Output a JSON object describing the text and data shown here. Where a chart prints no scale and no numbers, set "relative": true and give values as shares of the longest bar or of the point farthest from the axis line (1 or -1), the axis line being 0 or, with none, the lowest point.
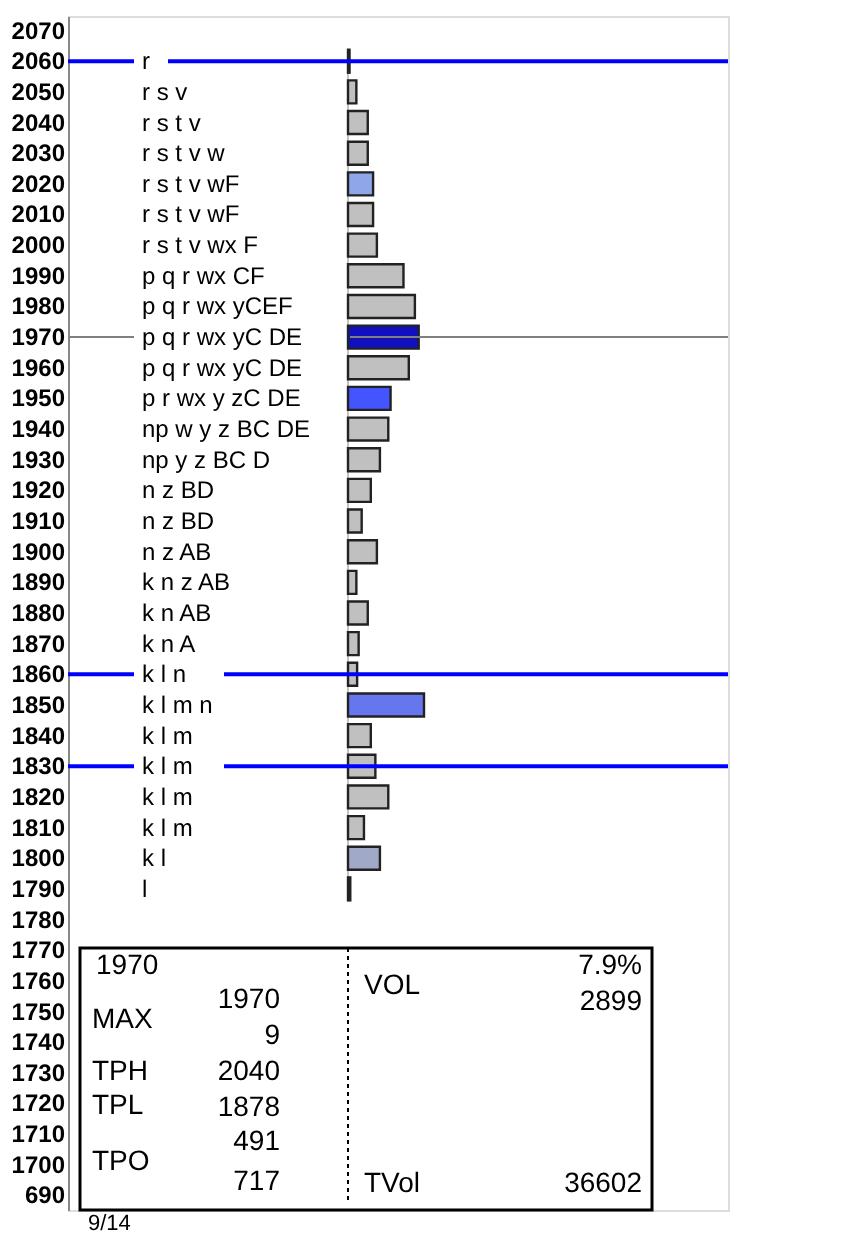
{
  "chart_data": {
    "type": "bar",
    "orientation": "horizontal",
    "relative": true,
    "categories": [
      "2070",
      "2060",
      "2050",
      "2040",
      "2030",
      "2020",
      "2010",
      "2000",
      "1990",
      "1980",
      "1970",
      "1960",
      "1950",
      "1940",
      "1930",
      "1920",
      "1910",
      "1900",
      "1890",
      "1880",
      "1870",
      "1860",
      "1850",
      "1840",
      "1830",
      "1820",
      "1810",
      "1800",
      "1790",
      "1780",
      "1770",
      "1760",
      "1750",
      "1740",
      "1730",
      "1720",
      "1710",
      "1700",
      "690"
    ],
    "values": [
      null,
      0.02,
      0.11,
      0.26,
      0.26,
      0.33,
      0.33,
      0.38,
      0.73,
      0.88,
      0.93,
      0.8,
      0.56,
      0.53,
      0.42,
      0.3,
      0.18,
      0.38,
      0.11,
      0.26,
      0.14,
      0.12,
      1,
      0.3,
      0.36,
      0.53,
      0.21,
      0.42,
      0.03,
      null,
      null,
      null,
      null,
      null,
      null,
      null,
      null,
      null,
      null
    ],
    "colors": [
      "#c0c0c0",
      "#c0c0c0",
      "#c0c0c0",
      "#c0c0c0",
      "#c0c0c0",
      "#8fa6e8",
      "#c0c0c0",
      "#c0c0c0",
      "#c0c0c0",
      "#c0c0c0",
      "#1010c0",
      "#c0c0c0",
      "#4455ff",
      "#c0c0c0",
      "#c0c0c0",
      "#c0c0c0",
      "#c0c0c0",
      "#c0c0c0",
      "#c0c0c0",
      "#c0c0c0",
      "#c0c0c0",
      "#c0c0c0",
      "#6677ee",
      "#c0c0c0",
      "#c0c0c0",
      "#c0c0c0",
      "#c0c0c0",
      "#a0aac8",
      "#000000",
      "#c0c0c0",
      "#c0c0c0",
      "#c0c0c0",
      "#c0c0c0",
      "#c0c0c0",
      "#c0c0c0",
      "#c0c0c0",
      "#c0c0c0",
      "#c0c0c0",
      "#c0c0c0"
    ],
    "ref_lines": [
      {
        "axis": "y",
        "value": "2060",
        "color": "#0000ff"
      },
      {
        "axis": "y",
        "value": "1970",
        "color": "#808080"
      },
      {
        "axis": "y",
        "value": "1860",
        "color": "#0000ff"
      },
      {
        "axis": "y",
        "value": "1830",
        "color": "#0000ff"
      }
    ],
    "annotations": [
      "r",
      "r s v",
      "r s t v",
      "r s t v w",
      "r s t v wF",
      "r s t v wF",
      "r s t v wx F",
      "p q r wx CF",
      "p q r wx yCEF",
      "p q r wx yC DE",
      "p q r wx yC DE",
      "p r wx y zC DE",
      "np w y z BC DE",
      "np y z BC D",
      "n z BD",
      "n z BD",
      "n z AB",
      "k n z AB",
      "k n AB",
      "k n A",
      "k l n",
      "k l m n",
      "k l m",
      "k l m",
      "k l m",
      "k l m",
      "k l",
      "l",
      "1970",
      "MAX",
      "1970",
      "9",
      "TPH",
      "2040",
      "TPL",
      "1878",
      "TPO",
      "491",
      "717",
      "VOL",
      "7.9%",
      "2899",
      "TVol",
      "36602",
      "9/14"
    ]
  }
}
